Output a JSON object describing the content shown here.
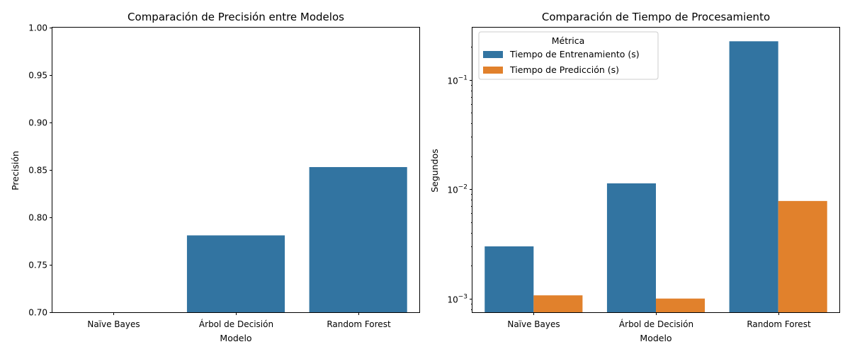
{
  "chart_data": [
    {
      "type": "bar",
      "title": "Comparación de Precisión entre Modelos",
      "xlabel": "Modelo",
      "ylabel": "Precisión",
      "categories": [
        "Naïve Bayes",
        "Árbol de Decisión",
        "Random Forest"
      ],
      "values": [
        0.69,
        0.781,
        0.853
      ],
      "ylim": [
        0.7,
        1.0
      ],
      "yticks": [
        "0.70",
        "0.75",
        "0.80",
        "0.85",
        "0.90",
        "0.95",
        "1.00"
      ],
      "color": "#3274a1",
      "grid": false
    },
    {
      "type": "bar",
      "title": "Comparación de Tiempo de Procesamiento",
      "xlabel": "Modelo",
      "ylabel": "Segundos",
      "yscale": "log",
      "categories": [
        "Naïve Bayes",
        "Árbol de Decisión",
        "Random Forest"
      ],
      "series": [
        {
          "name": "Tiempo de Entrenamiento (s)",
          "values": [
            0.003,
            0.0113,
            0.225
          ],
          "color": "#3274a1"
        },
        {
          "name": "Tiempo de Predicción (s)",
          "values": [
            0.00107,
            0.001,
            0.0078
          ],
          "color": "#e1812c"
        }
      ],
      "ylim": [
        0.00075,
        0.3
      ],
      "yticks": [
        {
          "value": 0.001,
          "base": "10",
          "exp": "−3"
        },
        {
          "value": 0.01,
          "base": "10",
          "exp": "−2"
        },
        {
          "value": 0.1,
          "base": "10",
          "exp": "−1"
        }
      ],
      "legend": {
        "title": "Métrica",
        "position": "upper-left"
      },
      "grid": false
    }
  ]
}
